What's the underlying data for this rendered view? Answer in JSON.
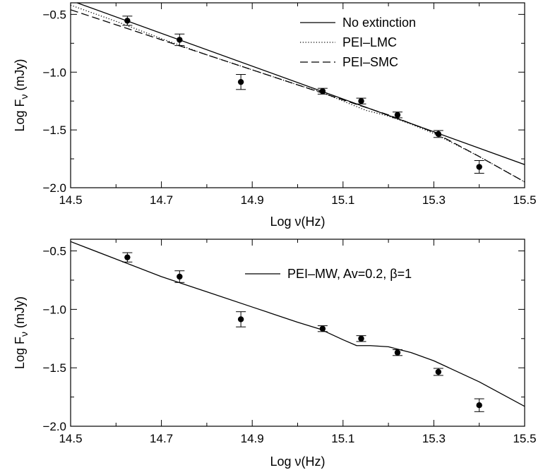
{
  "chart_data": [
    {
      "type": "line",
      "panel": "top",
      "title": "",
      "xlabel": "Log  ν(Hz)",
      "ylabel": "Log F",
      "ylabel_subscript": "ν",
      "ylabel_unit": " (mJy)",
      "xlim": [
        14.5,
        15.5
      ],
      "ylim": [
        -2.0,
        -0.4
      ],
      "xticks": [
        "14.5",
        "14.7",
        "14.9",
        "15.1",
        "15.3",
        "15.5"
      ],
      "yticks": [
        "-2.0",
        "-1.5",
        "-1.0",
        "-0.5"
      ],
      "grid": false,
      "legend_position": "top-right",
      "observations": [
        {
          "x": 14.625,
          "y": -0.555,
          "err": 0.04
        },
        {
          "x": 14.74,
          "y": -0.72,
          "err": 0.05
        },
        {
          "x": 14.875,
          "y": -1.085,
          "err": 0.065
        },
        {
          "x": 15.055,
          "y": -1.165,
          "err": 0.025
        },
        {
          "x": 15.14,
          "y": -1.25,
          "err": 0.025
        },
        {
          "x": 15.22,
          "y": -1.37,
          "err": 0.025
        },
        {
          "x": 15.31,
          "y": -1.535,
          "err": 0.03
        },
        {
          "x": 15.4,
          "y": -1.82,
          "err": 0.055
        }
      ],
      "series": [
        {
          "name": "No extinction",
          "style": "solid",
          "x": [
            14.5,
            15.5
          ],
          "y": [
            -0.38,
            -1.8
          ]
        },
        {
          "name": "PEI–LMC",
          "style": "dotted",
          "x": [
            14.5,
            14.6,
            14.7,
            14.8,
            14.9,
            15.0,
            15.05,
            15.1,
            15.15,
            15.2,
            15.25,
            15.3,
            15.4,
            15.5
          ],
          "y": [
            -0.42,
            -0.56,
            -0.71,
            -0.85,
            -0.98,
            -1.11,
            -1.17,
            -1.25,
            -1.33,
            -1.38,
            -1.45,
            -1.53,
            -1.73,
            -1.95
          ]
        },
        {
          "name": "PEI–SMC",
          "style": "dashed",
          "x": [
            14.5,
            14.6,
            14.7,
            14.8,
            14.9,
            15.0,
            15.1,
            15.2,
            15.3,
            15.4,
            15.5
          ],
          "y": [
            -0.46,
            -0.59,
            -0.72,
            -0.85,
            -0.98,
            -1.11,
            -1.24,
            -1.37,
            -1.52,
            -1.73,
            -1.95
          ]
        }
      ]
    },
    {
      "type": "line",
      "panel": "bottom",
      "title": "",
      "xlabel": "Log ν(Hz)",
      "ylabel": "Log F",
      "ylabel_subscript": "ν",
      "ylabel_unit": " (mJy)",
      "xlim": [
        14.5,
        15.5
      ],
      "ylim": [
        -2.0,
        -0.4
      ],
      "xticks": [
        "14.5",
        "14.7",
        "14.9",
        "15.1",
        "15.3",
        "15.5"
      ],
      "yticks": [
        "-2.0",
        "-1.5",
        "-1.0",
        "-0.5"
      ],
      "grid": false,
      "legend_position": "top-right",
      "observations": [
        {
          "x": 14.625,
          "y": -0.555,
          "err": 0.04
        },
        {
          "x": 14.74,
          "y": -0.72,
          "err": 0.05
        },
        {
          "x": 14.875,
          "y": -1.085,
          "err": 0.065
        },
        {
          "x": 15.055,
          "y": -1.165,
          "err": 0.025
        },
        {
          "x": 15.14,
          "y": -1.25,
          "err": 0.025
        },
        {
          "x": 15.22,
          "y": -1.37,
          "err": 0.025
        },
        {
          "x": 15.31,
          "y": -1.535,
          "err": 0.03
        },
        {
          "x": 15.4,
          "y": -1.82,
          "err": 0.055
        }
      ],
      "series": [
        {
          "name": "PEI–MW, Av=0.2, β=1",
          "style": "solid",
          "x": [
            14.5,
            14.6,
            14.7,
            14.8,
            14.9,
            15.0,
            15.05,
            15.1,
            15.13,
            15.16,
            15.2,
            15.25,
            15.3,
            15.4,
            15.5
          ],
          "y": [
            -0.42,
            -0.57,
            -0.72,
            -0.85,
            -0.98,
            -1.11,
            -1.17,
            -1.26,
            -1.31,
            -1.31,
            -1.32,
            -1.37,
            -1.44,
            -1.62,
            -1.83
          ]
        }
      ]
    }
  ]
}
